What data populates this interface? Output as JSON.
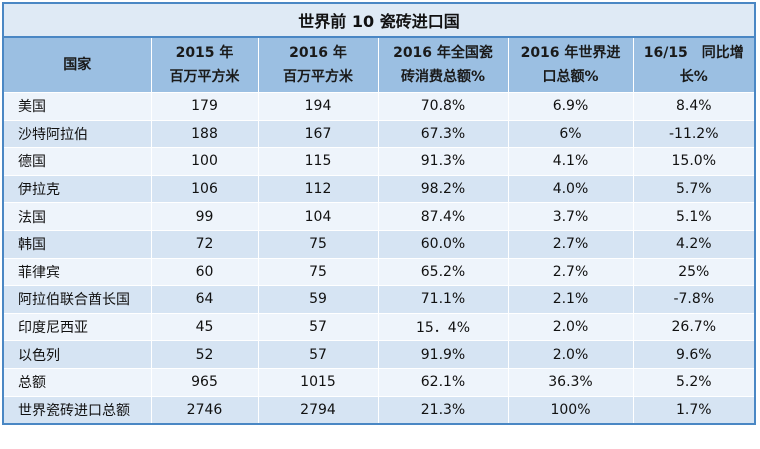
{
  "title": "世界前 10 瓷砖进口国",
  "headers": [
    {
      "line1": "国家",
      "line2": ""
    },
    {
      "line1": "2015 年",
      "line2": "百万平方米"
    },
    {
      "line1": "2016 年",
      "line2": "百万平方米"
    },
    {
      "line1": "2016 年全国瓷",
      "line2": "砖消费总额%"
    },
    {
      "line1": "2016 年世界进",
      "line2": "口总额%"
    },
    {
      "line1": "16/15　同比增",
      "line2": "长%"
    }
  ],
  "rows": [
    [
      "美国",
      "179",
      "194",
      "70.8%",
      "6.9%",
      "8.4%"
    ],
    [
      "沙特阿拉伯",
      "188",
      "167",
      "67.3%",
      "6%",
      "-11.2%"
    ],
    [
      "德国",
      "100",
      "115",
      "91.3%",
      "4.1%",
      "15.0%"
    ],
    [
      "伊拉克",
      "106",
      "112",
      "98.2%",
      "4.0%",
      "5.7%"
    ],
    [
      "法国",
      "99",
      "104",
      "87.4%",
      "3.7%",
      "5.1%"
    ],
    [
      "韩国",
      "72",
      "75",
      "60.0%",
      "2.7%",
      "4.2%"
    ],
    [
      "菲律宾",
      "60",
      "75",
      "65.2%",
      "2.7%",
      "25%"
    ],
    [
      "阿拉伯联合酋长国",
      "64",
      "59",
      "71.1%",
      "2.1%",
      "-7.8%"
    ],
    [
      "印度尼西亚",
      "45",
      "57",
      "15．4%",
      "2.0%",
      "26.7%"
    ],
    [
      "以色列",
      "52",
      "57",
      "91.9%",
      "2.0%",
      "9.6%"
    ],
    [
      "总额",
      "965",
      "1015",
      "62.1%",
      "36.3%",
      "5.2%"
    ],
    [
      "世界瓷砖进口总额",
      "2746",
      "2794",
      "21.3%",
      "100%",
      "1.7%"
    ]
  ],
  "colors": {
    "border": "#4a87c4",
    "title_bg": "#dfeaf5",
    "header_bg": "#9bbfe2",
    "row_light": "#eef4fb",
    "row_dark": "#d6e4f3"
  }
}
